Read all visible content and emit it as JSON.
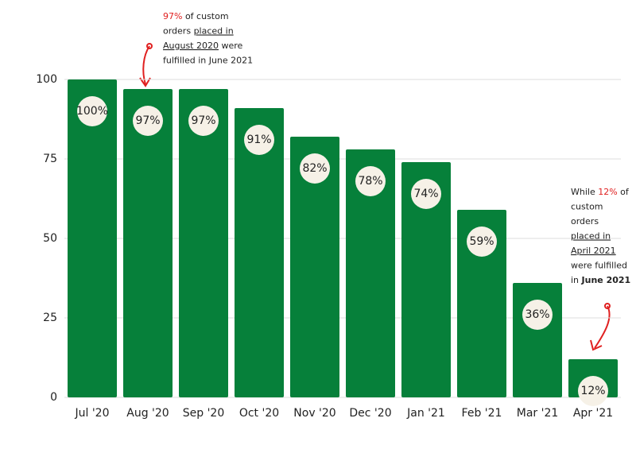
{
  "chart_data": {
    "type": "bar",
    "categories": [
      "Jul '20",
      "Aug '20",
      "Sep '20",
      "Oct '20",
      "Nov '20",
      "Dec '20",
      "Jan '21",
      "Feb '21",
      "Mar '21",
      "Apr '21"
    ],
    "values": [
      100,
      97,
      97,
      91,
      82,
      78,
      74,
      59,
      36,
      12
    ],
    "value_labels": [
      "100%",
      "97%",
      "97%",
      "91%",
      "82%",
      "78%",
      "74%",
      "59%",
      "36%",
      "12%"
    ],
    "color": "#06803a",
    "ylim": [
      0,
      100
    ],
    "yticks": [
      0,
      25,
      50,
      75,
      100
    ],
    "grid": true,
    "annotations": [
      {
        "lines": [
          [
            {
              "text": "97%",
              "color": "#e02020"
            },
            {
              "text": " of custom"
            }
          ],
          [
            {
              "text": "orders "
            },
            {
              "text": "placed in",
              "underline": true
            }
          ],
          [
            {
              "text": "August 2020",
              "underline": true
            },
            {
              "text": " were"
            }
          ],
          [
            {
              "text": "fulfilled in June 2021"
            }
          ]
        ]
      },
      {
        "lines": [
          [
            {
              "text": "While "
            },
            {
              "text": "12%",
              "color": "#e02020"
            },
            {
              "text": " of"
            }
          ],
          [
            {
              "text": "custom"
            }
          ],
          [
            {
              "text": "orders"
            }
          ],
          [
            {
              "text": "placed in",
              "underline": true
            }
          ],
          [
            {
              "text": "April 2021",
              "underline": true
            }
          ],
          [
            {
              "text": "were fulfilled"
            }
          ],
          [
            {
              "text": "in "
            },
            {
              "text": "June 2021",
              "bold": true
            }
          ]
        ]
      }
    ]
  }
}
